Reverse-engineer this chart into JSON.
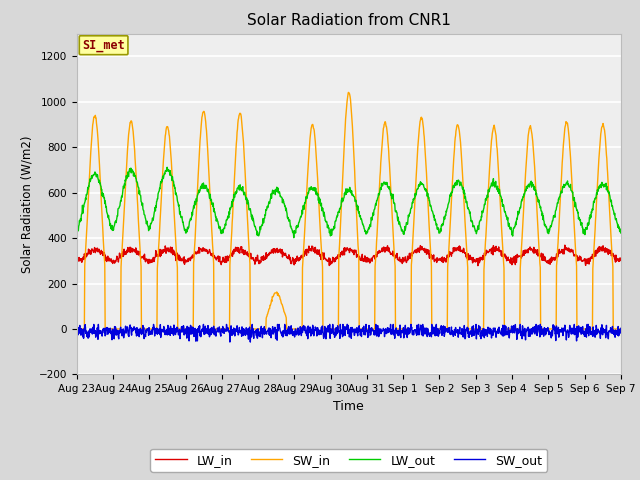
{
  "title": "Solar Radiation from CNR1",
  "xlabel": "Time",
  "ylabel": "Solar Radiation (W/m2)",
  "ylim": [
    -200,
    1300
  ],
  "yticks": [
    -200,
    0,
    200,
    400,
    600,
    800,
    1000,
    1200
  ],
  "x_labels": [
    "Aug 23",
    "Aug 24",
    "Aug 25",
    "Aug 26",
    "Aug 27",
    "Aug 28",
    "Aug 29",
    "Aug 30",
    "Aug 31",
    "Sep 1",
    "Sep 2",
    "Sep 3",
    "Sep 4",
    "Sep 5",
    "Sep 6",
    "Sep 7"
  ],
  "annotation_text": "SI_met",
  "annotation_color": "#8B0000",
  "annotation_bg": "#FFFFA0",
  "annotation_edge": "#999900",
  "bg_color": "#D8D8D8",
  "plot_bg": "#EEEEEE",
  "grid_color": "#FFFFFF",
  "legend_labels": [
    "LW_in",
    "SW_in",
    "LW_out",
    "SW_out"
  ],
  "legend_colors": [
    "#DD0000",
    "#FFA500",
    "#00CC00",
    "#0000DD"
  ],
  "line_width": 1.0,
  "n_days": 15,
  "n_points_per_day": 96,
  "lw_in_base": 300,
  "lw_in_amp": 50,
  "sw_in_peaks": [
    940,
    915,
    890,
    960,
    950,
    160,
    900,
    1040,
    910,
    930,
    900,
    890,
    890,
    910,
    900
  ],
  "lw_out_peaks": [
    680,
    700,
    700,
    630,
    620,
    610,
    620,
    610,
    640,
    640,
    650,
    640,
    640,
    640,
    640
  ],
  "lw_out_base": 370,
  "sw_out_mean": -10,
  "sw_out_noise": 15
}
